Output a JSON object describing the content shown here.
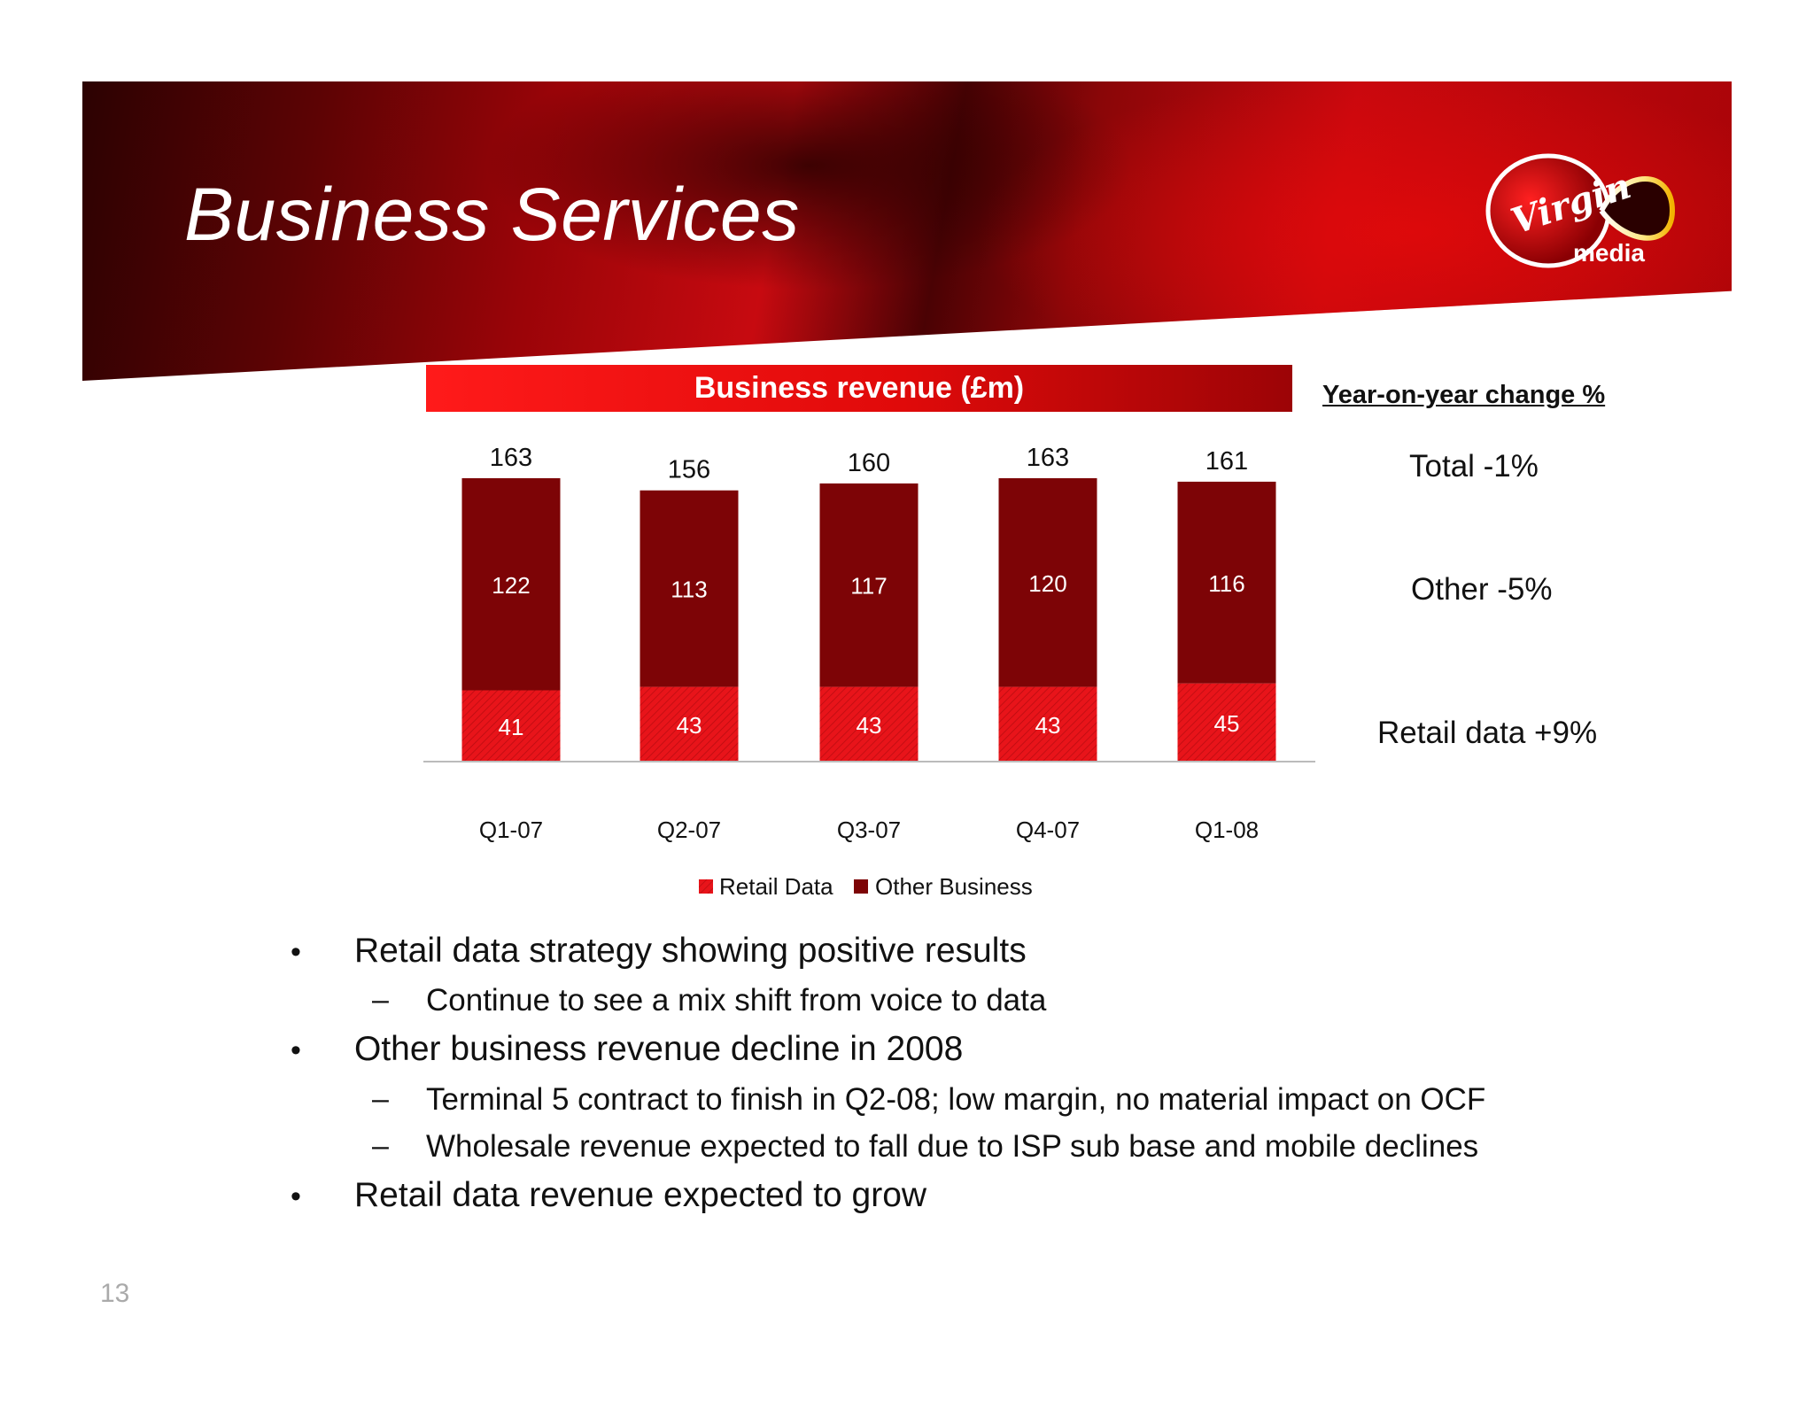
{
  "slide": {
    "title": "Business Services",
    "page_number": "13",
    "logo_text": [
      "Virgin",
      "media"
    ]
  },
  "chart_header": "Business revenue (£m)",
  "yoy": {
    "title": "Year-on-year change %",
    "items": [
      "Total -1%",
      "Other -5%",
      "Retail data +9%"
    ]
  },
  "legend": {
    "retail_data": "Retail Data",
    "other_business": "Other Business"
  },
  "colors": {
    "retail_data": "#e8141a",
    "other_business": "#7d0406",
    "header_red": "#e00a0a",
    "bar_label_inner": "#ffffff"
  },
  "chart_data": {
    "type": "bar",
    "stacked": true,
    "title": "Business revenue (£m)",
    "categories": [
      "Q1-07",
      "Q2-07",
      "Q3-07",
      "Q4-07",
      "Q1-08"
    ],
    "series": [
      {
        "name": "Retail Data",
        "values": [
          41,
          43,
          43,
          43,
          45
        ]
      },
      {
        "name": "Other Business",
        "values": [
          122,
          113,
          117,
          120,
          116
        ]
      }
    ],
    "totals": [
      163,
      156,
      160,
      163,
      161
    ],
    "legend_position": "bottom"
  },
  "bullets": [
    {
      "level": 1,
      "marker": "•",
      "text": "Retail data strategy showing positive results"
    },
    {
      "level": 2,
      "marker": "–",
      "text": "Continue to see a mix shift from voice to data"
    },
    {
      "level": 1,
      "marker": "•",
      "text": "Other business revenue decline in 2008"
    },
    {
      "level": 2,
      "marker": "–",
      "text": "Terminal 5 contract to finish in Q2-08; low margin, no material impact on OCF"
    },
    {
      "level": 2,
      "marker": "–",
      "text": "Wholesale revenue expected to fall due to ISP sub base and mobile declines"
    },
    {
      "level": 1,
      "marker": "•",
      "text": "Retail data revenue expected to grow"
    }
  ]
}
